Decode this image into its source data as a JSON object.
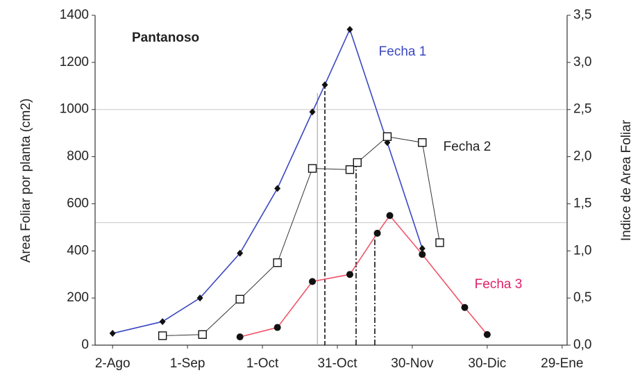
{
  "chart_data": {
    "type": "line",
    "annotation": "Pantanoso",
    "ylabel": "Area Foliar por planta (cm2)",
    "y2label": "Indice de Area Foliar",
    "xlim": [
      -7,
      182
    ],
    "xticks": [
      {
        "value": 0,
        "label": "2-Ago"
      },
      {
        "value": 30,
        "label": "1-Sep"
      },
      {
        "value": 60,
        "label": "1-Oct"
      },
      {
        "value": 90,
        "label": "31-Oct"
      },
      {
        "value": 120,
        "label": "30-Nov"
      },
      {
        "value": 150,
        "label": "30-Dic"
      },
      {
        "value": 180,
        "label": "29-Ene"
      }
    ],
    "ylim": [
      0,
      1400
    ],
    "yticks": [
      0,
      200,
      400,
      600,
      800,
      1000,
      1200,
      1400
    ],
    "y2lim": [
      0,
      3.5
    ],
    "y2ticks": [
      {
        "value": 0,
        "label": "0,0"
      },
      {
        "value": 0.5,
        "label": "0,5"
      },
      {
        "value": 1,
        "label": "1,0"
      },
      {
        "value": 1.5,
        "label": "1,5"
      },
      {
        "value": 2,
        "label": "2,0"
      },
      {
        "value": 2.5,
        "label": "2,5"
      },
      {
        "value": 3,
        "label": "3,0"
      },
      {
        "value": 3.5,
        "label": "3,5"
      }
    ],
    "hlines": [
      1000,
      520
    ],
    "reference_lines": [
      {
        "x": 82,
        "top": 1070,
        "style": "solid"
      },
      {
        "x": 85,
        "top": 1105,
        "style": "dashed"
      },
      {
        "x": 97.5,
        "top": 775,
        "style": "dashdot"
      },
      {
        "x": 105,
        "top": 475,
        "style": "dashdot"
      }
    ],
    "series": [
      {
        "name": "Fecha 1",
        "color": "#3a47c0",
        "label_color": "#3a47c0",
        "marker": "diamond",
        "x": [
          0,
          20,
          35,
          51,
          66,
          80,
          85,
          95,
          110,
          124
        ],
        "values": [
          50,
          100,
          200,
          390,
          665,
          990,
          1105,
          1340,
          860,
          410
        ]
      },
      {
        "name": "Fecha 2",
        "color": "#333333",
        "label_color": "#222222",
        "marker": "square",
        "x": [
          20,
          36,
          51,
          66,
          80,
          95,
          98,
          110,
          124,
          131
        ],
        "values": [
          40,
          45,
          195,
          350,
          750,
          745,
          775,
          885,
          860,
          435
        ]
      },
      {
        "name": "Fecha 3",
        "color": "#f0556a",
        "label_color": "#e0206a",
        "marker": "circle",
        "x": [
          51,
          66,
          80,
          95,
          106,
          111,
          124,
          141,
          150
        ],
        "values": [
          35,
          75,
          270,
          300,
          475,
          550,
          385,
          160,
          45
        ]
      }
    ]
  }
}
